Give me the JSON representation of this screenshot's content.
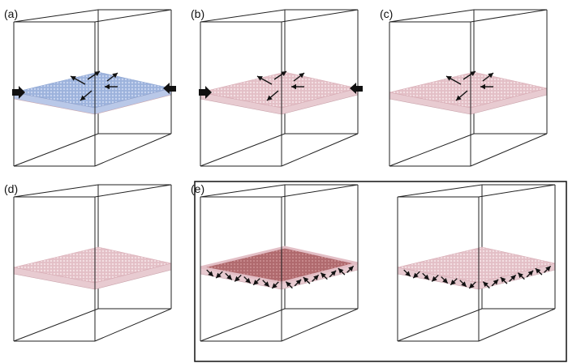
{
  "figure": {
    "panels": [
      {
        "label": "(a)",
        "slab_color": "#9db3dd",
        "side_arrows": true,
        "shear_arrows": true,
        "edge_arrows": false,
        "dark_top": false
      },
      {
        "label": "(b)",
        "slab_color": "#ddb3bc",
        "side_arrows": true,
        "shear_arrows": true,
        "edge_arrows": false,
        "dark_top": false
      },
      {
        "label": "(c)",
        "slab_color": "#ddb3bc",
        "side_arrows": false,
        "shear_arrows": true,
        "edge_arrows": false,
        "dark_top": false
      },
      {
        "label": "(d)",
        "slab_color": "#ddb3bc",
        "side_arrows": false,
        "shear_arrows": false,
        "edge_arrows": false,
        "dark_top": false
      },
      {
        "label": "(e)",
        "slab_color": "#ddb3bc",
        "side_arrows": false,
        "shear_arrows": false,
        "edge_arrows": true,
        "dark_top": true
      },
      {
        "label": "",
        "slab_color": "#ddb3bc",
        "side_arrows": false,
        "shear_arrows": false,
        "edge_arrows": true,
        "dark_top": false
      }
    ],
    "colors": {
      "box_edge": "#222222",
      "slab_side_pink": "#e8cbd1",
      "slab_side_blue": "#b9c8e8",
      "slab_dark_top": "#b26a6e",
      "arrow": "#111111",
      "frame": "#111111"
    }
  }
}
